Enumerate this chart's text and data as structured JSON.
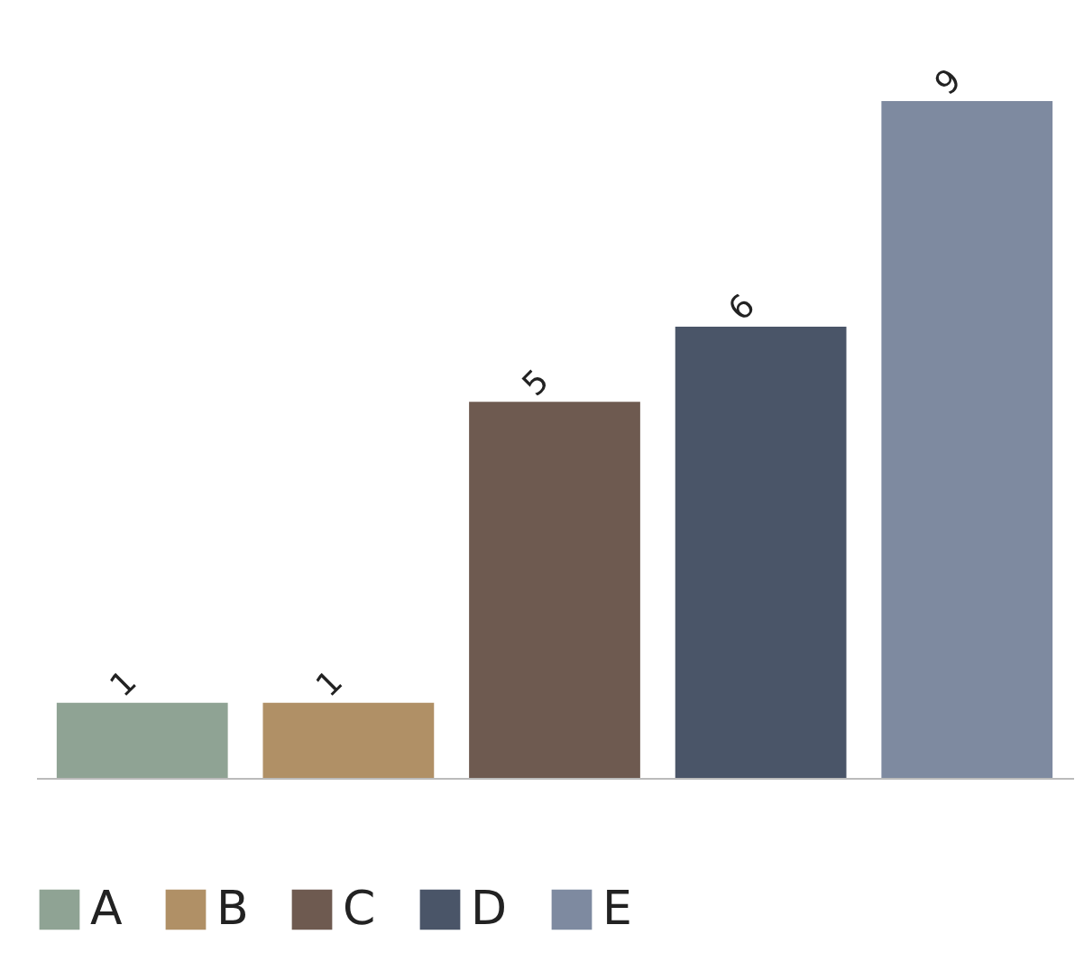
{
  "chart_data": {
    "type": "bar",
    "categories": [
      null
    ],
    "series": [
      {
        "name": "A",
        "color": "#8fa394",
        "values": [
          1
        ]
      },
      {
        "name": "B",
        "color": "#b09066",
        "values": [
          1
        ]
      },
      {
        "name": "C",
        "color": "#6e5a50",
        "values": [
          5
        ]
      },
      {
        "name": "D",
        "color": "#4a5568",
        "values": [
          6
        ]
      },
      {
        "name": "E",
        "color": "#7e8aa0",
        "values": [
          9
        ]
      }
    ],
    "data_labels": true,
    "legend": "bottom",
    "tick_labels": false
  }
}
